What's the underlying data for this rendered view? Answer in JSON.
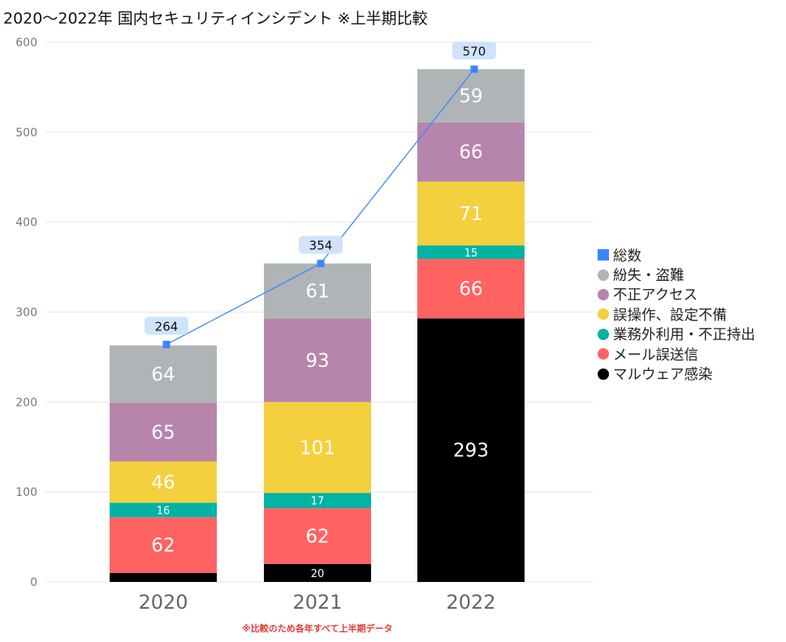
{
  "chart_data": {
    "type": "bar",
    "stacked": true,
    "title": "2020～2022年 国内セキュリティインシデント ※上半期比較",
    "categories": [
      "2020",
      "2021",
      "2022"
    ],
    "ylim": [
      0,
      600
    ],
    "yticks": [
      0,
      100,
      200,
      300,
      400,
      500,
      600
    ],
    "grid": true,
    "legend_position": "right",
    "series": [
      {
        "name": "マルウェア感染",
        "color": "#000000",
        "values": [
          10,
          20,
          293
        ],
        "labels": [
          "",
          "20",
          "293"
        ]
      },
      {
        "name": "メール誤送信",
        "color": "#ff6361",
        "values": [
          62,
          62,
          66
        ],
        "labels": [
          "62",
          "62",
          "66"
        ]
      },
      {
        "name": "業務外利用・不正持出",
        "color": "#00b3a4",
        "values": [
          16,
          17,
          15
        ],
        "labels": [
          "16",
          "17",
          "15"
        ]
      },
      {
        "name": "誤操作、設定不備",
        "color": "#f4d03f",
        "values": [
          46,
          101,
          71
        ],
        "labels": [
          "46",
          "101",
          "71"
        ]
      },
      {
        "name": "不正アクセス",
        "color": "#b784ab",
        "values": [
          65,
          93,
          66
        ],
        "labels": [
          "65",
          "93",
          "66"
        ]
      },
      {
        "name": "紛失・盗難",
        "color": "#afb4b6",
        "values": [
          64,
          61,
          59
        ],
        "labels": [
          "64",
          "61",
          "59"
        ]
      }
    ],
    "total": {
      "name": "総数",
      "color": "#3a86ff",
      "values": [
        264,
        354,
        570
      ],
      "labels": [
        "264",
        "354",
        "570"
      ],
      "type": "line"
    }
  },
  "footnote": "※比較のため各年すべて上半期データ"
}
